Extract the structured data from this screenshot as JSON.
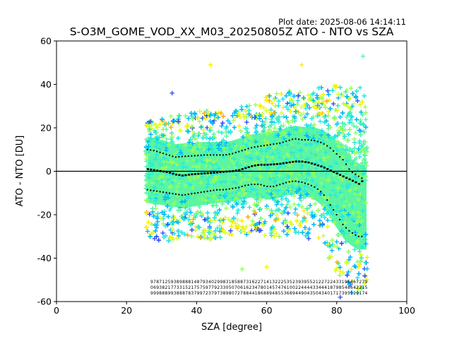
{
  "plot_date": "Plot date: 2025-08-06 14:14:11",
  "chart_data": {
    "type": "scatter",
    "title": "S-O3M_GOME_VOD_XX_M03_20250805Z ATO - NTO vs SZA",
    "xlabel": "SZA [degree]",
    "ylabel": "ATO - NTO [DU]",
    "xlim": [
      0,
      100
    ],
    "ylim": [
      -60,
      60
    ],
    "xticks": [
      0,
      20,
      40,
      60,
      80,
      100
    ],
    "yticks": [
      -60,
      -40,
      -20,
      0,
      20,
      40,
      60
    ],
    "grid": false,
    "legend": "none",
    "reference_line_y": 0,
    "colors": {
      "scatter_palette": [
        "#3050ff",
        "#00b8ff",
        "#26e8e0",
        "#5af5a8",
        "#96ff5a",
        "#d8ff20",
        "#ffee00",
        "#ffb000"
      ],
      "dense_core": "#5af5a0",
      "mean_marker": "#000000",
      "axis": "#000000"
    },
    "scatter_envelope": {
      "description_sza": [
        26,
        30,
        35,
        40,
        45,
        50,
        55,
        60,
        65,
        70,
        75,
        80,
        85,
        88
      ],
      "upper": [
        22,
        25,
        25,
        26,
        28,
        28,
        30,
        33,
        36,
        35,
        37,
        38,
        40,
        35
      ],
      "lower": [
        -28,
        -32,
        -30,
        -30,
        -30,
        -28,
        -29,
        -30,
        -28,
        -28,
        -30,
        -45,
        -55,
        -50
      ]
    },
    "series": [
      {
        "x": [
          26,
          28,
          30,
          32,
          34,
          36,
          38,
          40,
          42,
          44,
          46,
          48,
          50,
          52,
          54,
          56,
          58,
          60,
          62,
          64,
          66,
          68,
          70,
          72,
          74,
          76,
          78,
          80,
          82,
          84,
          86,
          87,
          88
        ],
        "values": [
          1,
          0.5,
          0,
          -0.5,
          -1.5,
          -2,
          -1.5,
          -1.2,
          -1,
          -0.8,
          -0.5,
          -0.2,
          0,
          0.5,
          1.5,
          2.5,
          3,
          3,
          3.2,
          3.5,
          4,
          4.5,
          4.5,
          4,
          3,
          2,
          0.5,
          -1,
          -2.5,
          -4,
          -5.5,
          -6.5,
          3
        ]
      },
      {
        "x": [
          26,
          28,
          30,
          32,
          34,
          36,
          38,
          40,
          42,
          44,
          46,
          48,
          50,
          52,
          54,
          56,
          58,
          60,
          62,
          64,
          66,
          68,
          70,
          72,
          74,
          76,
          78,
          80,
          82,
          84,
          86,
          88
        ],
        "values": [
          10,
          9.5,
          8.5,
          7.5,
          6.5,
          6.8,
          7,
          7.2,
          7.5,
          7.5,
          7.5,
          7.5,
          8,
          9,
          10,
          11,
          11.5,
          12,
          12.5,
          13,
          14,
          15,
          14.5,
          14.5,
          14,
          13,
          11,
          8,
          5,
          0,
          -2,
          -4
        ]
      },
      {
        "x": [
          26,
          28,
          30,
          32,
          34,
          36,
          38,
          40,
          42,
          44,
          46,
          48,
          50,
          52,
          54,
          56,
          58,
          60,
          62,
          64,
          66,
          68,
          70,
          72,
          74,
          76,
          78,
          80,
          82,
          84,
          86,
          88
        ],
        "values": [
          -8.5,
          -9,
          -9.5,
          -10,
          -10.5,
          -11,
          -10.5,
          -10,
          -9.5,
          -9,
          -8.5,
          -8.5,
          -8,
          -7.5,
          -6.5,
          -6,
          -6,
          -7,
          -7,
          -6,
          -5,
          -4.5,
          -5,
          -6,
          -7.5,
          -10,
          -15,
          -20,
          -25,
          -28,
          -30,
          -30
        ]
      }
    ],
    "count_labels": {
      "row1": [
        "9",
        "7",
        "8",
        "7",
        "1",
        "2",
        "5",
        "9",
        "3",
        "8",
        "9",
        "8",
        "8",
        "8",
        "1",
        "4",
        "8",
        "7",
        "9",
        "3",
        "4",
        "0",
        "2",
        "9",
        "9",
        "8",
        "3",
        "1",
        "8",
        "5",
        "8",
        "8",
        "7",
        "3",
        "1",
        "6",
        "2",
        "2",
        "7",
        "1",
        "4",
        "1",
        "3",
        "2",
        "2",
        "2",
        "5",
        "3",
        "5",
        "2",
        "3",
        "9",
        "3",
        "9",
        "5",
        "5",
        "2",
        "1",
        "2",
        "2",
        "7",
        "2",
        "2",
        "4",
        "3",
        "3",
        "1",
        "9",
        "6",
        "4",
        "6",
        "7",
        "2",
        "7",
        "9"
      ],
      "row2": [
        "0",
        "6",
        "9",
        "3",
        "8",
        "2",
        "1",
        "7",
        "7",
        "3",
        "3",
        "1",
        "5",
        "2",
        "1",
        "7",
        "5",
        "7",
        "5",
        "9",
        "7",
        "7",
        "9",
        "2",
        "3",
        "3",
        "0",
        "5",
        "0",
        "7",
        "0",
        "6",
        "1",
        "6",
        "2",
        "3",
        "4",
        "7",
        "8",
        "0",
        "1",
        "4",
        "5",
        "7",
        "4",
        "7",
        "6",
        "1",
        "0",
        "0",
        "2",
        "2",
        "4",
        "4",
        "4",
        "4",
        "3",
        "3",
        "4",
        "4",
        "4",
        "1",
        "8",
        "7",
        "9",
        "8",
        "5",
        "4",
        "8",
        "6",
        "4",
        "2",
        "2",
        "1",
        "5"
      ],
      "row3": [
        "9",
        "9",
        "9",
        "8",
        "8",
        "8",
        "9",
        "9",
        "3",
        "8",
        "8",
        "8",
        "7",
        "8",
        "3",
        "7",
        "9",
        "9",
        "7",
        "2",
        "3",
        "7",
        "9",
        "7",
        "3",
        "8",
        "9",
        "8",
        "0",
        "7",
        "2",
        "7",
        "8",
        "8",
        "4",
        "4",
        "1",
        "8",
        "6",
        "8",
        "8",
        "9",
        "4",
        "8",
        "5",
        "5",
        "3",
        "6",
        "8",
        "9",
        "4",
        "4",
        "9",
        "0",
        "4",
        "3",
        "5",
        "0",
        "4",
        "3",
        "4",
        "0",
        "1",
        "7",
        "1",
        "7",
        "3",
        "9",
        "5",
        "5",
        "2",
        "9",
        "1",
        "7",
        "4"
      ]
    }
  }
}
